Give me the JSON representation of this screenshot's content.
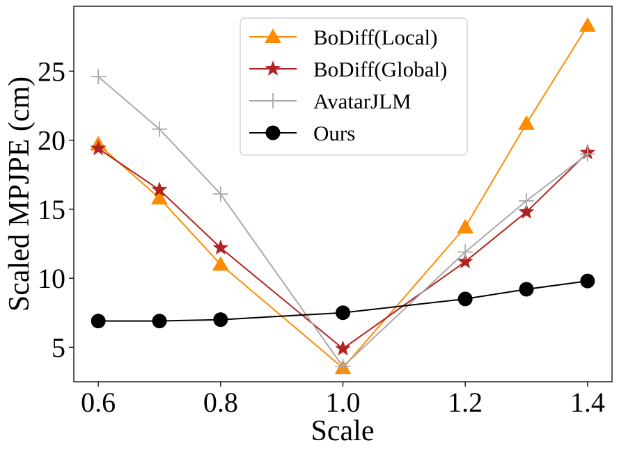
{
  "chart_data": {
    "type": "line",
    "title": "",
    "xlabel": "Scale",
    "ylabel": "Scaled MPJPE (cm)",
    "x": [
      0.6,
      0.7,
      0.8,
      1.0,
      1.2,
      1.3,
      1.4
    ],
    "xticks": [
      "0.6",
      "0.8",
      "1.0",
      "1.2",
      "1.4"
    ],
    "xtick_values": [
      0.6,
      0.8,
      1.0,
      1.2,
      1.4
    ],
    "yticks": [
      "5",
      "10",
      "15",
      "20",
      "25"
    ],
    "ytick_values": [
      5,
      10,
      15,
      20,
      25
    ],
    "xlim": [
      0.56,
      1.44
    ],
    "ylim": [
      2.5,
      29.7
    ],
    "grid": false,
    "legend_position": "top-center",
    "series": [
      {
        "name": "BoDiff(Local)",
        "color": "#ff8c00",
        "marker": "triangle",
        "values": [
          19.7,
          15.8,
          11.0,
          3.5,
          13.7,
          21.2,
          28.3
        ]
      },
      {
        "name": "BoDiff(Global)",
        "color": "#b22222",
        "marker": "star",
        "values": [
          19.4,
          16.4,
          12.2,
          4.9,
          11.2,
          14.8,
          19.1
        ]
      },
      {
        "name": "AvatarJLM",
        "color": "#a9a9a9",
        "marker": "plus",
        "values": [
          24.6,
          20.8,
          16.1,
          3.6,
          11.9,
          15.6,
          19.0
        ]
      },
      {
        "name": "Ours",
        "color": "#000000",
        "marker": "circle",
        "values": [
          6.9,
          6.9,
          7.0,
          7.5,
          8.5,
          9.2,
          9.8
        ]
      }
    ]
  }
}
